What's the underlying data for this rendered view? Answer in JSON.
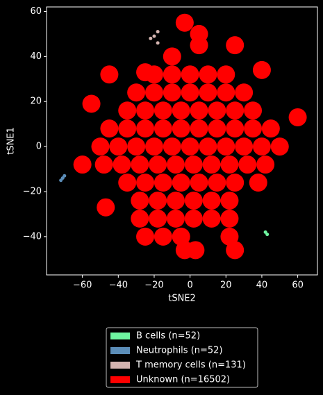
{
  "chart_data": {
    "type": "scatter",
    "xlabel": "tSNE2",
    "ylabel": "tSNE1",
    "xlim": [
      -80,
      71
    ],
    "ylim": [
      -57,
      62
    ],
    "xticks": [
      {
        "value": -60,
        "label": "−60"
      },
      {
        "value": -40,
        "label": "−40"
      },
      {
        "value": -20,
        "label": "−20"
      },
      0,
      20,
      40,
      60
    ],
    "yticks": [
      {
        "value": -40,
        "label": "−40"
      },
      {
        "value": -20,
        "label": "−20"
      },
      0,
      20,
      40,
      60
    ],
    "series": [
      {
        "name": "B cells (n=52)",
        "color": "#6ef5a0",
        "x": [
          42,
          43
        ],
        "values": [
          -38,
          -39
        ]
      },
      {
        "name": "Neutrophils (n=52)",
        "color": "#5b8db8",
        "x": [
          -72,
          -71,
          -70
        ],
        "values": [
          -15,
          -14,
          -13
        ]
      },
      {
        "name": "T memory cells (n=131)",
        "color": "#d4b4b0",
        "x": [
          -22,
          -20,
          -18,
          -18
        ],
        "values": [
          48,
          49,
          51,
          46
        ]
      },
      {
        "name": "Unknown (n=16502)",
        "color": "#ff0000",
        "x": [
          5,
          5,
          25,
          -10,
          -25,
          -45,
          -55,
          40,
          60,
          -47,
          -3,
          -20,
          -10,
          0,
          10,
          20,
          -30,
          -20,
          -10,
          0,
          10,
          20,
          30,
          -35,
          -25,
          -15,
          -5,
          5,
          15,
          25,
          35,
          -45,
          -35,
          -25,
          -15,
          -5,
          5,
          15,
          25,
          35,
          45,
          -50,
          -40,
          -30,
          -20,
          -10,
          0,
          10,
          20,
          30,
          40,
          50,
          -60,
          -48,
          -38,
          -28,
          -18,
          -8,
          2,
          12,
          22,
          32,
          42,
          -35,
          -25,
          -15,
          -5,
          5,
          15,
          25,
          38,
          -28,
          -18,
          -8,
          2,
          12,
          22,
          -28,
          -18,
          -8,
          2,
          12,
          22,
          -25,
          -15,
          -5,
          22,
          -3,
          3,
          25
        ],
        "values": [
          50,
          45,
          45,
          40,
          33,
          32,
          19,
          34,
          13,
          -27,
          55,
          32,
          32,
          32,
          32,
          32,
          24,
          24,
          24,
          24,
          24,
          24,
          24,
          16,
          16,
          16,
          16,
          16,
          16,
          16,
          16,
          8,
          8,
          8,
          8,
          8,
          8,
          8,
          8,
          8,
          8,
          0,
          0,
          0,
          0,
          0,
          0,
          0,
          0,
          0,
          0,
          0,
          -8,
          -8,
          -8,
          -8,
          -8,
          -8,
          -8,
          -8,
          -8,
          -8,
          -8,
          -16,
          -16,
          -16,
          -16,
          -16,
          -16,
          -16,
          -16,
          -24,
          -24,
          -24,
          -24,
          -24,
          -24,
          -32,
          -32,
          -32,
          -32,
          -32,
          -32,
          -40,
          -40,
          -40,
          -40,
          -46,
          -46,
          -46
        ]
      }
    ]
  }
}
